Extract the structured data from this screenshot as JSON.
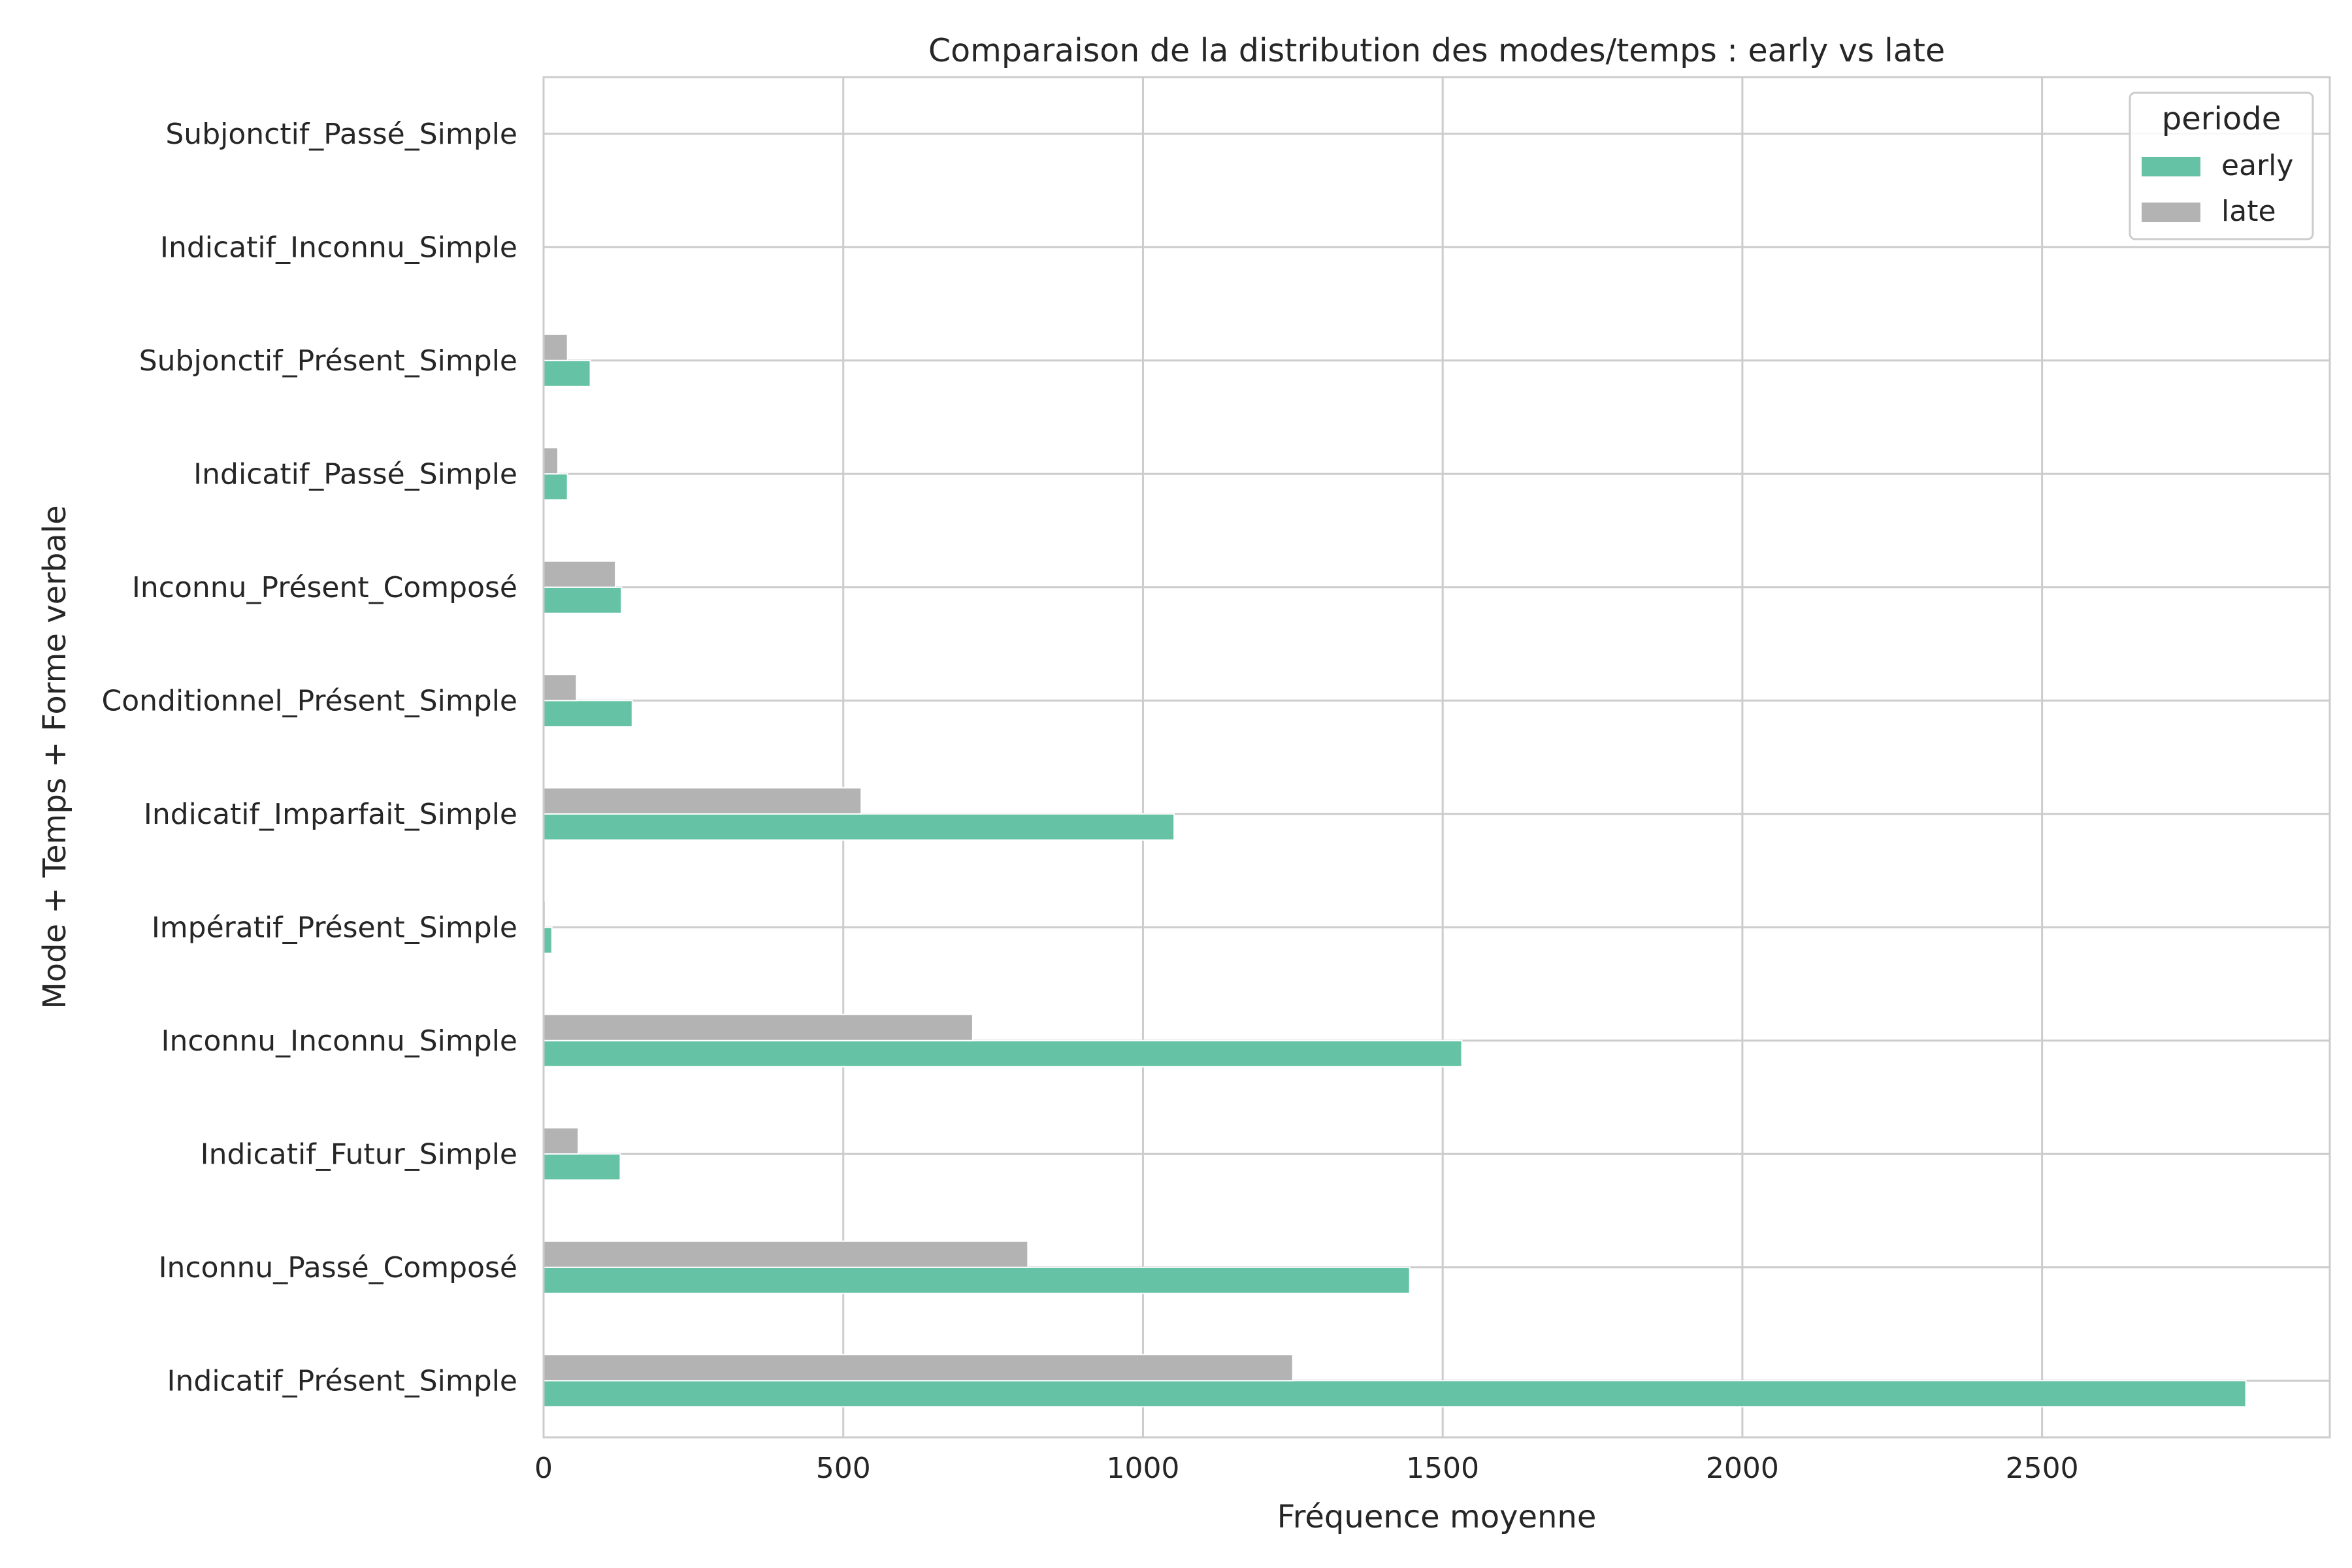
{
  "chart_data": {
    "type": "bar",
    "orientation": "horizontal",
    "title": "Comparaison de la distribution des modes/temps : early vs late",
    "xlabel": "Fréquence moyenne",
    "ylabel": "Mode + Temps + Forme verbale",
    "xlim": [
      0,
      2980
    ],
    "xticks": [
      0,
      500,
      1000,
      1500,
      2000,
      2500
    ],
    "grid": true,
    "legend": {
      "title": "periode",
      "placement": "top-right"
    },
    "categories": [
      "Indicatif_Présent_Simple",
      "Inconnu_Passé_Composé",
      "Indicatif_Futur_Simple",
      "Inconnu_Inconnu_Simple",
      "Impératif_Présent_Simple",
      "Indicatif_Imparfait_Simple",
      "Conditionnel_Présent_Simple",
      "Inconnu_Présent_Composé",
      "Indicatif_Passé_Simple",
      "Subjonctif_Présent_Simple",
      "Indicatif_Inconnu_Simple",
      "Subjonctif_Passé_Simple"
    ],
    "series": [
      {
        "name": "early",
        "color": "#66c2a5",
        "values": [
          2840,
          1445,
          128,
          1532,
          14,
          1052,
          148,
          130,
          40,
          78,
          0,
          0
        ]
      },
      {
        "name": "late",
        "color": "#b3b3b3",
        "values": [
          1250,
          808,
          58,
          716,
          3,
          530,
          55,
          120,
          24,
          40,
          0,
          0
        ]
      }
    ]
  }
}
